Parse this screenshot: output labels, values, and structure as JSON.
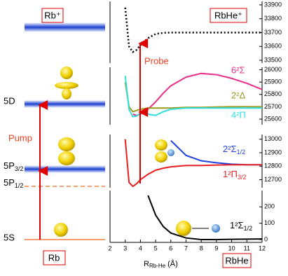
{
  "diagram": {
    "ion_label": "Rb⁺",
    "atom_label": "Rb",
    "pump_label": "Pump",
    "levels": [
      {
        "label": "5D"
      },
      {
        "label": "5P",
        "sub": "3/2"
      },
      {
        "label": "5P",
        "sub": "1/2"
      },
      {
        "label": "5S"
      }
    ]
  },
  "chart_data": [
    {
      "type": "line",
      "box_label": "RbHe⁺",
      "annotation": "Probe",
      "x": [
        2.5,
        3,
        3.25,
        3.5,
        3.75,
        4,
        4.5,
        5,
        5.5,
        6,
        7,
        8,
        9,
        10,
        11,
        12
      ],
      "xlim": [
        2,
        12
      ],
      "ylim": [
        33480,
        33925
      ],
      "yticks": [
        33500,
        33600,
        33700,
        33800,
        33900
      ],
      "series": [
        {
          "color": "#000000",
          "line_style": "dotted",
          "values": [
            null,
            33880,
            33600,
            33560,
            33575,
            33610,
            33660,
            33690,
            33698,
            33700,
            33700,
            33700,
            33700,
            33700,
            33700,
            33700
          ]
        }
      ]
    },
    {
      "type": "line",
      "x": [
        2.5,
        3,
        3.25,
        3.5,
        3.75,
        4,
        4.5,
        5,
        5.5,
        6,
        7,
        8,
        9,
        10,
        11,
        12
      ],
      "xlim": [
        2,
        12
      ],
      "ylim": [
        25555,
        26020
      ],
      "yticks": [
        25600,
        25700,
        25800,
        25900,
        26000
      ],
      "series": [
        {
          "name": "6²Σ",
          "color": "#e8308a",
          "values": [
            null,
            null,
            null,
            25640,
            25630,
            25640,
            25680,
            25740,
            25810,
            25870,
            25940,
            25970,
            25960,
            25930,
            25890,
            25840
          ]
        },
        {
          "name": "2²Δ",
          "color": "#9a9a20",
          "values": [
            null,
            25900,
            25700,
            25660,
            25670,
            25680,
            25690,
            25690,
            25690,
            25690,
            25695,
            25695,
            25698,
            25700,
            25700,
            25700
          ]
        },
        {
          "name": "4²Π",
          "color": "#30dede",
          "values": [
            null,
            25950,
            25680,
            25620,
            25625,
            25650,
            25640,
            25630,
            25660,
            25680,
            25690,
            25690,
            25690,
            25690,
            25690,
            25690
          ]
        }
      ]
    },
    {
      "type": "line",
      "x": [
        2.5,
        3,
        3.25,
        3.5,
        3.75,
        4,
        4.5,
        5,
        5.5,
        6,
        7,
        8,
        9,
        10,
        11,
        12
      ],
      "xlim": [
        2,
        12
      ],
      "ylim": [
        12640,
        13035
      ],
      "yticks": [
        12700,
        12800,
        12900,
        13000
      ],
      "series": [
        {
          "name": "2²Σ",
          "name_sub": "1/2",
          "color": "#2040e0",
          "values": [
            null,
            null,
            null,
            null,
            null,
            null,
            null,
            null,
            null,
            12990,
            12880,
            12840,
            12825,
            12815,
            12810,
            12810
          ]
        },
        {
          "name": "1²Π",
          "name_sub": "3/2",
          "color": "#e82020",
          "values": [
            null,
            13000,
            12680,
            12650,
            12670,
            12700,
            12740,
            12770,
            12785,
            12795,
            12805,
            12805,
            12808,
            12810,
            12810,
            12810
          ]
        }
      ]
    },
    {
      "type": "line",
      "box_label": "RbHe",
      "x_label": "R",
      "x_label_sub": "Rb-He",
      "x_label_unit": "(Å)",
      "x": [
        2.5,
        3,
        3.25,
        3.5,
        3.75,
        4,
        4.5,
        5,
        5.5,
        6,
        7,
        8,
        9,
        10,
        11,
        12
      ],
      "xlim": [
        2,
        12
      ],
      "ylim": [
        -17,
        300
      ],
      "yticks": [
        0,
        100,
        200
      ],
      "xticks": [
        2,
        3,
        4,
        5,
        6,
        7,
        8,
        9,
        10,
        11,
        12
      ],
      "series": [
        {
          "name": "1²Σ",
          "name_sub": "1/2",
          "color": "#000000",
          "values": [
            null,
            null,
            null,
            null,
            null,
            null,
            270,
            150,
            80,
            40,
            10,
            0,
            0,
            2,
            3,
            4
          ]
        }
      ]
    }
  ]
}
